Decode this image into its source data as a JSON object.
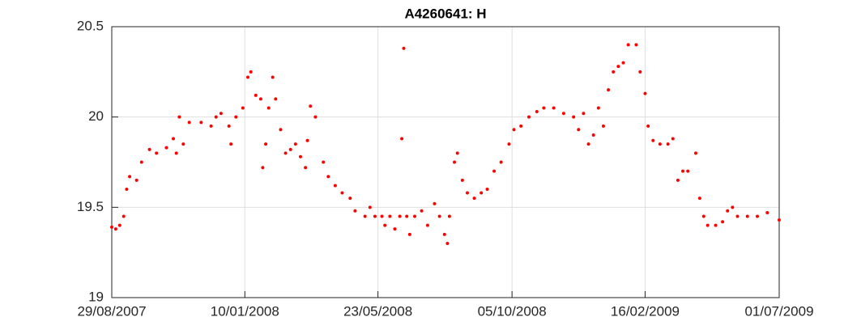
{
  "chart_data": {
    "type": "scatter",
    "title": "A4260641: H",
    "color": "#ff0000",
    "grid": true,
    "xlim": [
      "2007-08-29",
      "2009-07-01"
    ],
    "xticks": [
      {
        "value": "2007-08-29",
        "label": "29/08/2007"
      },
      {
        "value": "2008-01-10",
        "label": "10/01/2008"
      },
      {
        "value": "2008-05-23",
        "label": "23/05/2008"
      },
      {
        "value": "2008-10-05",
        "label": "05/10/2008"
      },
      {
        "value": "2009-02-16",
        "label": "16/02/2009"
      },
      {
        "value": "2009-07-01",
        "label": "01/07/2009"
      }
    ],
    "ylim": [
      19,
      20.5
    ],
    "yticks": [
      19,
      19.5,
      20,
      20.5
    ],
    "x": [
      "2007-08-29",
      "2007-09-02",
      "2007-09-06",
      "2007-09-10",
      "2007-09-13",
      "2007-09-16",
      "2007-09-23",
      "2007-09-28",
      "2007-10-06",
      "2007-10-13",
      "2007-10-23",
      "2007-10-30",
      "2007-11-02",
      "2007-11-05",
      "2007-11-09",
      "2007-11-15",
      "2007-11-27",
      "2007-12-07",
      "2007-12-12",
      "2007-12-17",
      "2007-12-25",
      "2007-12-27",
      "2008-01-01",
      "2008-01-08",
      "2008-01-13",
      "2008-01-16",
      "2008-01-21",
      "2008-01-26",
      "2008-01-28",
      "2008-01-31",
      "2008-02-03",
      "2008-02-07",
      "2008-02-10",
      "2008-02-15",
      "2008-02-20",
      "2008-02-25",
      "2008-03-01",
      "2008-03-06",
      "2008-03-11",
      "2008-03-13",
      "2008-03-16",
      "2008-03-21",
      "2008-03-29",
      "2008-04-03",
      "2008-04-10",
      "2008-04-17",
      "2008-04-25",
      "2008-04-30",
      "2008-05-10",
      "2008-05-15",
      "2008-05-20",
      "2008-05-27",
      "2008-05-30",
      "2008-06-04",
      "2008-06-09",
      "2008-06-14",
      "2008-06-16",
      "2008-06-18",
      "2008-06-21",
      "2008-06-24",
      "2008-06-29",
      "2008-07-06",
      "2008-07-12",
      "2008-07-19",
      "2008-07-24",
      "2008-07-29",
      "2008-08-01",
      "2008-08-03",
      "2008-08-08",
      "2008-08-11",
      "2008-08-16",
      "2008-08-21",
      "2008-08-28",
      "2008-09-04",
      "2008-09-10",
      "2008-09-17",
      "2008-09-24",
      "2008-10-02",
      "2008-10-07",
      "2008-10-14",
      "2008-10-22",
      "2008-10-30",
      "2008-11-06",
      "2008-11-16",
      "2008-11-26",
      "2008-12-06",
      "2008-12-11",
      "2008-12-16",
      "2008-12-21",
      "2008-12-26",
      "2008-12-31",
      "2009-01-05",
      "2009-01-10",
      "2009-01-15",
      "2009-01-20",
      "2009-01-25",
      "2009-01-30",
      "2009-02-07",
      "2009-02-11",
      "2009-02-16",
      "2009-02-19",
      "2009-02-24",
      "2009-03-03",
      "2009-03-11",
      "2009-03-16",
      "2009-03-21",
      "2009-03-26",
      "2009-03-31",
      "2009-04-08",
      "2009-04-12",
      "2009-04-16",
      "2009-04-20",
      "2009-04-28",
      "2009-05-05",
      "2009-05-10",
      "2009-05-15",
      "2009-05-20",
      "2009-05-30",
      "2009-06-09",
      "2009-06-19",
      "2009-07-01"
    ],
    "values": [
      19.39,
      19.38,
      19.4,
      19.45,
      19.6,
      19.67,
      19.65,
      19.75,
      19.82,
      19.8,
      19.83,
      19.88,
      19.8,
      20.0,
      19.85,
      19.97,
      19.97,
      19.95,
      20.0,
      20.02,
      19.95,
      19.85,
      20.0,
      20.05,
      20.22,
      20.25,
      20.12,
      20.1,
      19.72,
      19.85,
      20.05,
      20.22,
      20.1,
      19.93,
      19.8,
      19.82,
      19.85,
      19.78,
      19.72,
      19.87,
      20.06,
      20.0,
      19.75,
      19.67,
      19.62,
      19.58,
      19.55,
      19.48,
      19.45,
      19.5,
      19.45,
      19.45,
      19.4,
      19.45,
      19.38,
      19.45,
      19.88,
      20.38,
      19.45,
      19.35,
      19.45,
      19.48,
      19.4,
      19.52,
      19.45,
      19.35,
      19.3,
      19.45,
      19.75,
      19.8,
      19.65,
      19.58,
      19.55,
      19.58,
      19.6,
      19.7,
      19.75,
      19.85,
      19.93,
      19.95,
      20.0,
      20.03,
      20.05,
      20.05,
      20.02,
      20.0,
      19.93,
      20.02,
      19.85,
      19.9,
      20.05,
      19.95,
      20.15,
      20.25,
      20.28,
      20.3,
      20.4,
      20.4,
      20.25,
      20.13,
      19.95,
      19.87,
      19.85,
      19.85,
      19.88,
      19.65,
      19.7,
      19.7,
      19.8,
      19.55,
      19.45,
      19.4,
      19.4,
      19.42,
      19.48,
      19.5,
      19.45,
      19.45,
      19.45,
      19.47,
      19.43
    ]
  }
}
